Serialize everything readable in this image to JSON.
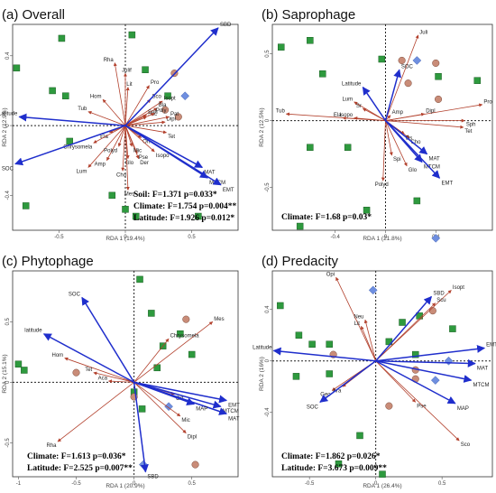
{
  "colors": {
    "blue": "#1f2ecc",
    "red": "#b2402c",
    "green": "#2e9a3e",
    "tan": "#c98c78",
    "diamond": "#6f8fe0"
  },
  "chart_data": [
    {
      "id": "a",
      "type": "scatter",
      "title": "(a) Overall",
      "xlabel": "RDA 1 (19.4%)",
      "ylabel": "RDA 2 (12.9%)",
      "xlim": [
        -0.85,
        0.85
      ],
      "ylim": [
        -0.6,
        0.58
      ],
      "xticks": [
        -0.5,
        0,
        0.5
      ],
      "yticks": [
        -0.4,
        0,
        0.4
      ],
      "stats_lines": [
        "Soil: F=1.371 p=0.033*",
        "Climate: F=1.754 p=0.004**",
        "Latitude: F=1.926 p=0.012*"
      ],
      "env_vectors": [
        {
          "label": "SOC",
          "x": -0.83,
          "y": -0.22
        },
        {
          "label": "Latitude",
          "x": -0.8,
          "y": 0.05
        },
        {
          "label": "SBD",
          "x": 0.7,
          "y": 0.56
        },
        {
          "label": "MAT",
          "x": 0.58,
          "y": -0.24
        },
        {
          "label": "MTCM",
          "x": 0.62,
          "y": -0.3
        },
        {
          "label": "EMT",
          "x": 0.72,
          "y": -0.34
        }
      ],
      "species_vectors": [
        {
          "label": "Rha",
          "x": -0.08,
          "y": 0.36
        },
        {
          "label": "Julif",
          "x": 0.0,
          "y": 0.3
        },
        {
          "label": "Lit",
          "x": 0.02,
          "y": 0.22
        },
        {
          "label": "Hom",
          "x": -0.17,
          "y": 0.15
        },
        {
          "label": "Tub",
          "x": -0.28,
          "y": 0.08
        },
        {
          "label": "Ela",
          "x": -0.12,
          "y": -0.04
        },
        {
          "label": "Chrysomela",
          "x": -0.24,
          "y": -0.1
        },
        {
          "label": "Lum",
          "x": -0.28,
          "y": -0.24
        },
        {
          "label": "Amp",
          "x": -0.14,
          "y": -0.2
        },
        {
          "label": "Polyd",
          "x": -0.05,
          "y": -0.12
        },
        {
          "label": "Cho",
          "x": -0.02,
          "y": -0.26
        },
        {
          "label": "Glo",
          "x": 0.02,
          "y": -0.19
        },
        {
          "label": "Mes",
          "x": 0.02,
          "y": -0.37
        },
        {
          "label": "Der",
          "x": 0.1,
          "y": -0.19
        },
        {
          "label": "Pse",
          "x": 0.09,
          "y": -0.16
        },
        {
          "label": "Mic",
          "x": 0.05,
          "y": -0.12
        },
        {
          "label": "Ort",
          "x": 0.12,
          "y": -0.07
        },
        {
          "label": "Isopo",
          "x": 0.22,
          "y": -0.15
        },
        {
          "label": "Tet",
          "x": 0.31,
          "y": -0.04
        },
        {
          "label": "Ssc",
          "x": 0.16,
          "y": 0.05
        },
        {
          "label": "Dipl",
          "x": 0.3,
          "y": 0.02
        },
        {
          "label": "Pat",
          "x": 0.33,
          "y": 0.05
        },
        {
          "label": "Isopt",
          "x": 0.28,
          "y": 0.14
        },
        {
          "label": "Sco",
          "x": 0.19,
          "y": 0.15
        },
        {
          "label": "Bla",
          "x": 0.24,
          "y": 0.1
        },
        {
          "label": "Pro",
          "x": 0.18,
          "y": 0.23
        },
        {
          "label": "Sph",
          "x": 0.16,
          "y": 0.06
        },
        {
          "label": "Poly",
          "x": 0.22,
          "y": 0.07
        }
      ],
      "sites": [
        {
          "shape": "square",
          "x": -0.48,
          "y": 0.5
        },
        {
          "shape": "square",
          "x": -0.82,
          "y": 0.33
        },
        {
          "shape": "square",
          "x": -0.55,
          "y": 0.2
        },
        {
          "shape": "square",
          "x": -0.45,
          "y": 0.17
        },
        {
          "shape": "square",
          "x": 0.05,
          "y": 0.52
        },
        {
          "shape": "square",
          "x": 0.15,
          "y": 0.32
        },
        {
          "shape": "square",
          "x": -0.42,
          "y": -0.09
        },
        {
          "shape": "square",
          "x": -0.75,
          "y": -0.46
        },
        {
          "shape": "square",
          "x": -0.1,
          "y": -0.4
        },
        {
          "shape": "square",
          "x": 0.0,
          "y": -0.48
        },
        {
          "shape": "square",
          "x": 0.08,
          "y": -0.52
        },
        {
          "shape": "square",
          "x": 0.55,
          "y": -0.52
        },
        {
          "shape": "square",
          "x": 0.32,
          "y": 0.17
        },
        {
          "shape": "circle",
          "x": 0.37,
          "y": 0.3
        },
        {
          "shape": "circle",
          "x": 0.4,
          "y": 0.05
        },
        {
          "shape": "circle",
          "x": 0.3,
          "y": 0.09
        },
        {
          "shape": "diamond",
          "x": 0.45,
          "y": 0.17
        }
      ]
    },
    {
      "id": "b",
      "type": "scatter",
      "title": "(b) Saprophage",
      "xlabel": "RDA 1 (21.8%)",
      "ylabel": "RDA 2 (12.5%)",
      "xlim": [
        -0.9,
        0.85
      ],
      "ylim": [
        -0.82,
        0.72
      ],
      "xticks": [
        -0.4,
        0,
        0.4
      ],
      "yticks": [
        -0.5,
        0,
        0.5
      ],
      "stats_lines": [
        "Climate: F=1.68 p=0.03*"
      ],
      "env_vectors": [
        {
          "label": "Latitude",
          "x": -0.18,
          "y": 0.25
        },
        {
          "label": "SOC",
          "x": 0.11,
          "y": 0.38
        },
        {
          "label": "MAT",
          "x": 0.33,
          "y": -0.25
        },
        {
          "label": "MTCM",
          "x": 0.29,
          "y": -0.31
        },
        {
          "label": "EMT",
          "x": 0.43,
          "y": -0.43
        }
      ],
      "species_vectors": [
        {
          "label": "Juli",
          "x": 0.26,
          "y": 0.64
        },
        {
          "label": "Lum",
          "x": -0.25,
          "y": 0.14
        },
        {
          "label": "Tub",
          "x": -0.79,
          "y": 0.05
        },
        {
          "label": "Ela",
          "x": -0.34,
          "y": 0.02
        },
        {
          "label": "Isopo",
          "x": -0.25,
          "y": 0.02
        },
        {
          "label": "Sr",
          "x": -0.18,
          "y": 0.09
        },
        {
          "label": "Amp",
          "x": 0.04,
          "y": 0.04
        },
        {
          "label": "Cho",
          "x": 0.19,
          "y": -0.13
        },
        {
          "label": "Ds",
          "x": 0.15,
          "y": -0.1
        },
        {
          "label": "Spi",
          "x": 0.05,
          "y": -0.26
        },
        {
          "label": "Glo",
          "x": 0.17,
          "y": -0.34
        },
        {
          "label": "Polyd",
          "x": -0.02,
          "y": -0.45
        },
        {
          "label": "Pro",
          "x": 0.77,
          "y": 0.12
        },
        {
          "label": "Sph",
          "x": 0.63,
          "y": 0.0
        },
        {
          "label": "Tet",
          "x": 0.62,
          "y": -0.05
        },
        {
          "label": "Dipl",
          "x": 0.31,
          "y": 0.05
        }
      ],
      "sites": [
        {
          "shape": "square",
          "x": -0.83,
          "y": 0.55
        },
        {
          "shape": "square",
          "x": -0.6,
          "y": 0.6
        },
        {
          "shape": "square",
          "x": -0.5,
          "y": 0.35
        },
        {
          "shape": "square",
          "x": -0.03,
          "y": 0.46
        },
        {
          "shape": "square",
          "x": 0.73,
          "y": 0.3
        },
        {
          "shape": "square",
          "x": -0.6,
          "y": -0.2
        },
        {
          "shape": "square",
          "x": -0.3,
          "y": -0.2
        },
        {
          "shape": "square",
          "x": -0.68,
          "y": -0.79
        },
        {
          "shape": "square",
          "x": -0.15,
          "y": -0.67
        },
        {
          "shape": "square",
          "x": 0.25,
          "y": -0.6
        },
        {
          "shape": "square",
          "x": 0.42,
          "y": 0.33
        },
        {
          "shape": "circle",
          "x": 0.13,
          "y": 0.45
        },
        {
          "shape": "circle",
          "x": 0.4,
          "y": 0.43
        },
        {
          "shape": "circle",
          "x": 0.18,
          "y": 0.28
        },
        {
          "shape": "circle",
          "x": 0.42,
          "y": 0.16
        },
        {
          "shape": "diamond",
          "x": 0.25,
          "y": 0.45
        },
        {
          "shape": "diamond",
          "x": 0.4,
          "y": -0.88
        }
      ]
    },
    {
      "id": "c",
      "type": "scatter",
      "title": "(c) Phytophage",
      "xlabel": "RDA 1 (20.9%)",
      "ylabel": "RDA 2 (15.1%)",
      "xlim": [
        -1.05,
        0.9
      ],
      "ylim": [
        -0.78,
        0.92
      ],
      "xticks": [
        -1.0,
        -0.5,
        0,
        0.5
      ],
      "yticks": [
        -0.5,
        0,
        0.5
      ],
      "stats_lines": [
        "Climate: F=1.613 p=0.036*",
        "Latitude: F=2.525 p=0.007**"
      ],
      "env_vectors": [
        {
          "label": "SOC",
          "x": -0.45,
          "y": 0.7
        },
        {
          "label": "latitude",
          "x": -0.78,
          "y": 0.4
        },
        {
          "label": "EMT",
          "x": 0.8,
          "y": -0.15
        },
        {
          "label": "MTCM",
          "x": 0.75,
          "y": -0.2
        },
        {
          "label": "MAT",
          "x": 0.8,
          "y": -0.26
        },
        {
          "label": "MAP",
          "x": 0.52,
          "y": -0.18
        },
        {
          "label": "SBD",
          "x": 0.1,
          "y": -0.74
        }
      ],
      "species_vectors": [
        {
          "label": "Mes",
          "x": 0.68,
          "y": 0.5
        },
        {
          "label": "Chrysomela",
          "x": 0.3,
          "y": 0.36
        },
        {
          "label": "Hom",
          "x": -0.6,
          "y": 0.2
        },
        {
          "label": "Tet",
          "x": -0.35,
          "y": 0.08
        },
        {
          "label": "Aca",
          "x": -0.22,
          "y": 0.01
        },
        {
          "label": "Rha",
          "x": -0.66,
          "y": -0.49
        },
        {
          "label": "Ort",
          "x": 0.35,
          "y": -0.1
        },
        {
          "label": "Mic",
          "x": 0.4,
          "y": -0.28
        },
        {
          "label": "Dipl",
          "x": 0.45,
          "y": -0.42
        }
      ],
      "sites": [
        {
          "shape": "square",
          "x": 0.05,
          "y": 0.85
        },
        {
          "shape": "square",
          "x": 0.15,
          "y": 0.57
        },
        {
          "shape": "square",
          "x": -1.0,
          "y": 0.15
        },
        {
          "shape": "square",
          "x": -0.95,
          "y": 0.1
        },
        {
          "shape": "square",
          "x": 0.25,
          "y": 0.3
        },
        {
          "shape": "square",
          "x": 0.2,
          "y": 0.12
        },
        {
          "shape": "square",
          "x": 0.0,
          "y": -0.08
        },
        {
          "shape": "square",
          "x": 0.07,
          "y": -0.22
        },
        {
          "shape": "square",
          "x": 0.4,
          "y": 0.4
        },
        {
          "shape": "square",
          "x": 0.5,
          "y": 0.23
        },
        {
          "shape": "circle",
          "x": -0.5,
          "y": 0.08
        },
        {
          "shape": "circle",
          "x": 0.45,
          "y": 0.52
        },
        {
          "shape": "circle",
          "x": 0.0,
          "y": -0.12
        },
        {
          "shape": "circle",
          "x": 0.53,
          "y": -0.68
        },
        {
          "shape": "diamond",
          "x": 0.3,
          "y": -0.2
        },
        {
          "shape": "diamond",
          "x": 0.08,
          "y": -0.68
        }
      ]
    },
    {
      "id": "d",
      "type": "scatter",
      "title": "(d) Predacity",
      "xlabel": "RDA 1 (26.4%)",
      "ylabel": "RDA 2 (16%)",
      "xlim": [
        -0.78,
        0.88
      ],
      "ylim": [
        -0.9,
        0.7
      ],
      "xticks": [
        -0.5,
        0,
        0.5
      ],
      "yticks": [
        -0.4,
        0,
        0.4
      ],
      "stats_lines": [
        "Climate: F=1.862 p=0.026*",
        "Latitude: F=3.673 p=0.009**"
      ],
      "env_vectors": [
        {
          "label": "Latitude",
          "x": -0.77,
          "y": 0.08
        },
        {
          "label": "SOC",
          "x": -0.42,
          "y": -0.32
        },
        {
          "label": "SBD",
          "x": 0.42,
          "y": 0.5
        },
        {
          "label": "EMT",
          "x": 0.82,
          "y": 0.1
        },
        {
          "label": "MAT",
          "x": 0.75,
          "y": -0.02
        },
        {
          "label": "MTCM",
          "x": 0.72,
          "y": -0.15
        },
        {
          "label": "MAP",
          "x": 0.6,
          "y": -0.33
        }
      ],
      "species_vectors": [
        {
          "label": "Opi",
          "x": -0.3,
          "y": 0.65
        },
        {
          "label": "Isopt",
          "x": 0.57,
          "y": 0.55
        },
        {
          "label": "Scu",
          "x": 0.45,
          "y": 0.45
        },
        {
          "label": "Neu",
          "x": -0.08,
          "y": 0.32
        },
        {
          "label": "Lit",
          "x": -0.11,
          "y": 0.27
        },
        {
          "label": "Geo",
          "x": -0.33,
          "y": -0.23
        },
        {
          "label": "Ara",
          "x": -0.25,
          "y": -0.2
        },
        {
          "label": "Pse",
          "x": 0.3,
          "y": -0.32
        },
        {
          "label": "Sco",
          "x": 0.63,
          "y": -0.62
        }
      ],
      "sites": [
        {
          "shape": "square",
          "x": -0.72,
          "y": 0.43
        },
        {
          "shape": "square",
          "x": -0.58,
          "y": 0.2
        },
        {
          "shape": "square",
          "x": -0.48,
          "y": 0.13
        },
        {
          "shape": "square",
          "x": -0.35,
          "y": 0.13
        },
        {
          "shape": "square",
          "x": -0.6,
          "y": -0.12
        },
        {
          "shape": "square",
          "x": -0.35,
          "y": -0.1
        },
        {
          "shape": "square",
          "x": 0.2,
          "y": 0.3
        },
        {
          "shape": "square",
          "x": 0.33,
          "y": 0.35
        },
        {
          "shape": "square",
          "x": 0.1,
          "y": 0.15
        },
        {
          "shape": "square",
          "x": -0.12,
          "y": -0.58
        },
        {
          "shape": "square",
          "x": -0.28,
          "y": -0.8
        },
        {
          "shape": "square",
          "x": 0.58,
          "y": 0.25
        },
        {
          "shape": "square",
          "x": 0.3,
          "y": 0.05
        },
        {
          "shape": "circle",
          "x": 0.43,
          "y": 0.39
        },
        {
          "shape": "circle",
          "x": 0.3,
          "y": -0.14
        },
        {
          "shape": "circle",
          "x": 0.1,
          "y": -0.35
        },
        {
          "shape": "circle",
          "x": -0.32,
          "y": 0.05
        },
        {
          "shape": "circle",
          "x": 0.3,
          "y": -0.07
        },
        {
          "shape": "diamond",
          "x": -0.02,
          "y": 0.55
        },
        {
          "shape": "diamond",
          "x": 0.55,
          "y": 0.0
        },
        {
          "shape": "diamond",
          "x": 0.45,
          "y": -0.15
        },
        {
          "shape": "square",
          "x": 0.05,
          "y": -0.88
        }
      ]
    }
  ]
}
